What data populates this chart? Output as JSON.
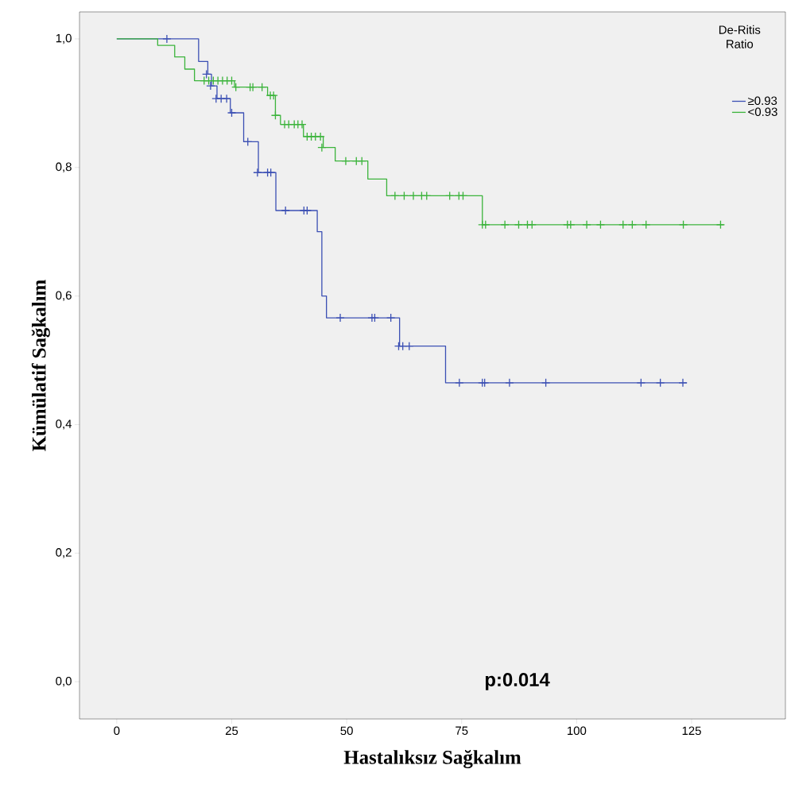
{
  "chart_data": {
    "type": "step",
    "xlabel": "Hastalıksız Sağkalım",
    "ylabel": "Kümülatif Sağkalım",
    "legend_title": "De-Ritis Ratio",
    "annotations": [
      "p:0.014"
    ],
    "xlim": [
      -8.1,
      145.4
    ],
    "ylim": [
      -0.058,
      1.042
    ],
    "xticks": [
      0,
      25,
      50,
      75,
      100,
      125
    ],
    "yticks": [
      {
        "value": 0,
        "label": "0,0"
      },
      {
        "value": 0.2,
        "label": "0,2"
      },
      {
        "value": 0.4,
        "label": "0,4"
      },
      {
        "value": 0.6,
        "label": "0,6"
      },
      {
        "value": 0.8,
        "label": "0,8"
      },
      {
        "value": 1.0,
        "label": "1,0"
      }
    ],
    "legend": "top right",
    "line_style": "solid",
    "series": [
      {
        "name": "≥0.93",
        "color": "#3c50b4",
        "x": [
          0,
          17.8,
          19.8,
          20.6,
          21.8,
          24.7,
          27.6,
          30.8,
          34.6,
          43.6,
          44.6,
          45.6,
          61.5,
          71.5,
          124
        ],
        "values": [
          1.0,
          0.965,
          0.945,
          0.927,
          0.907,
          0.885,
          0.84,
          0.792,
          0.733,
          0.7,
          0.6,
          0.566,
          0.522,
          0.465,
          0.465
        ]
      },
      {
        "name": "<0.93",
        "color": "#3cb43c",
        "x": [
          0,
          8.9,
          12.6,
          14.8,
          16.9,
          25.6,
          32.8,
          34.5,
          35.6,
          40.6,
          44.9,
          47.5,
          54.6,
          58.7,
          79.5,
          132
        ],
        "values": [
          1.0,
          0.99,
          0.972,
          0.953,
          0.935,
          0.925,
          0.912,
          0.881,
          0.867,
          0.848,
          0.831,
          0.81,
          0.782,
          0.756,
          0.711,
          0.711
        ]
      },
      {
        "color": "#3c50b4",
        "type": "scatter",
        "marker": "cross",
        "x": [
          10.9,
          19.5,
          20.4,
          21.6,
          22.7,
          23.9,
          25.0,
          28.5,
          30.6,
          32.8,
          33.5,
          36.7,
          40.7,
          41.4,
          48.6,
          55.5,
          56.1,
          59.6,
          61.3,
          62.2,
          63.6,
          74.5,
          79.5,
          80.0,
          85.4,
          93.3,
          114.0,
          118.2,
          123.1
        ],
        "values": [
          1.0,
          0.945,
          0.927,
          0.907,
          0.907,
          0.907,
          0.885,
          0.84,
          0.792,
          0.792,
          0.792,
          0.733,
          0.733,
          0.733,
          0.566,
          0.566,
          0.566,
          0.566,
          0.522,
          0.522,
          0.522,
          0.465,
          0.465,
          0.465,
          0.465,
          0.465,
          0.465,
          0.465,
          0.465
        ]
      },
      {
        "color": "#3cb43c",
        "type": "scatter",
        "marker": "cross",
        "x": [
          19.0,
          20.0,
          21.0,
          22.0,
          23.0,
          24.0,
          25.0,
          25.9,
          29.0,
          29.6,
          31.6,
          33.4,
          34.1,
          34.5,
          36.5,
          37.4,
          38.6,
          39.4,
          40.3,
          41.4,
          42.3,
          43.2,
          44.3,
          44.6,
          49.8,
          52.1,
          53.3,
          60.5,
          62.5,
          64.5,
          66.3,
          67.4,
          72.4,
          74.4,
          75.3,
          79.5,
          80.2,
          84.4,
          87.4,
          89.3,
          90.3,
          98.0,
          98.7,
          102.2,
          105.2,
          110.1,
          112.1,
          115.1,
          123.2,
          131.3
        ],
        "values": [
          0.935,
          0.935,
          0.935,
          0.935,
          0.935,
          0.935,
          0.935,
          0.925,
          0.925,
          0.925,
          0.925,
          0.912,
          0.912,
          0.881,
          0.867,
          0.867,
          0.867,
          0.867,
          0.867,
          0.848,
          0.848,
          0.848,
          0.848,
          0.831,
          0.81,
          0.81,
          0.81,
          0.756,
          0.756,
          0.756,
          0.756,
          0.756,
          0.756,
          0.756,
          0.756,
          0.711,
          0.711,
          0.711,
          0.711,
          0.711,
          0.711,
          0.711,
          0.711,
          0.711,
          0.711,
          0.711,
          0.711,
          0.711,
          0.711,
          0.711
        ]
      }
    ]
  }
}
